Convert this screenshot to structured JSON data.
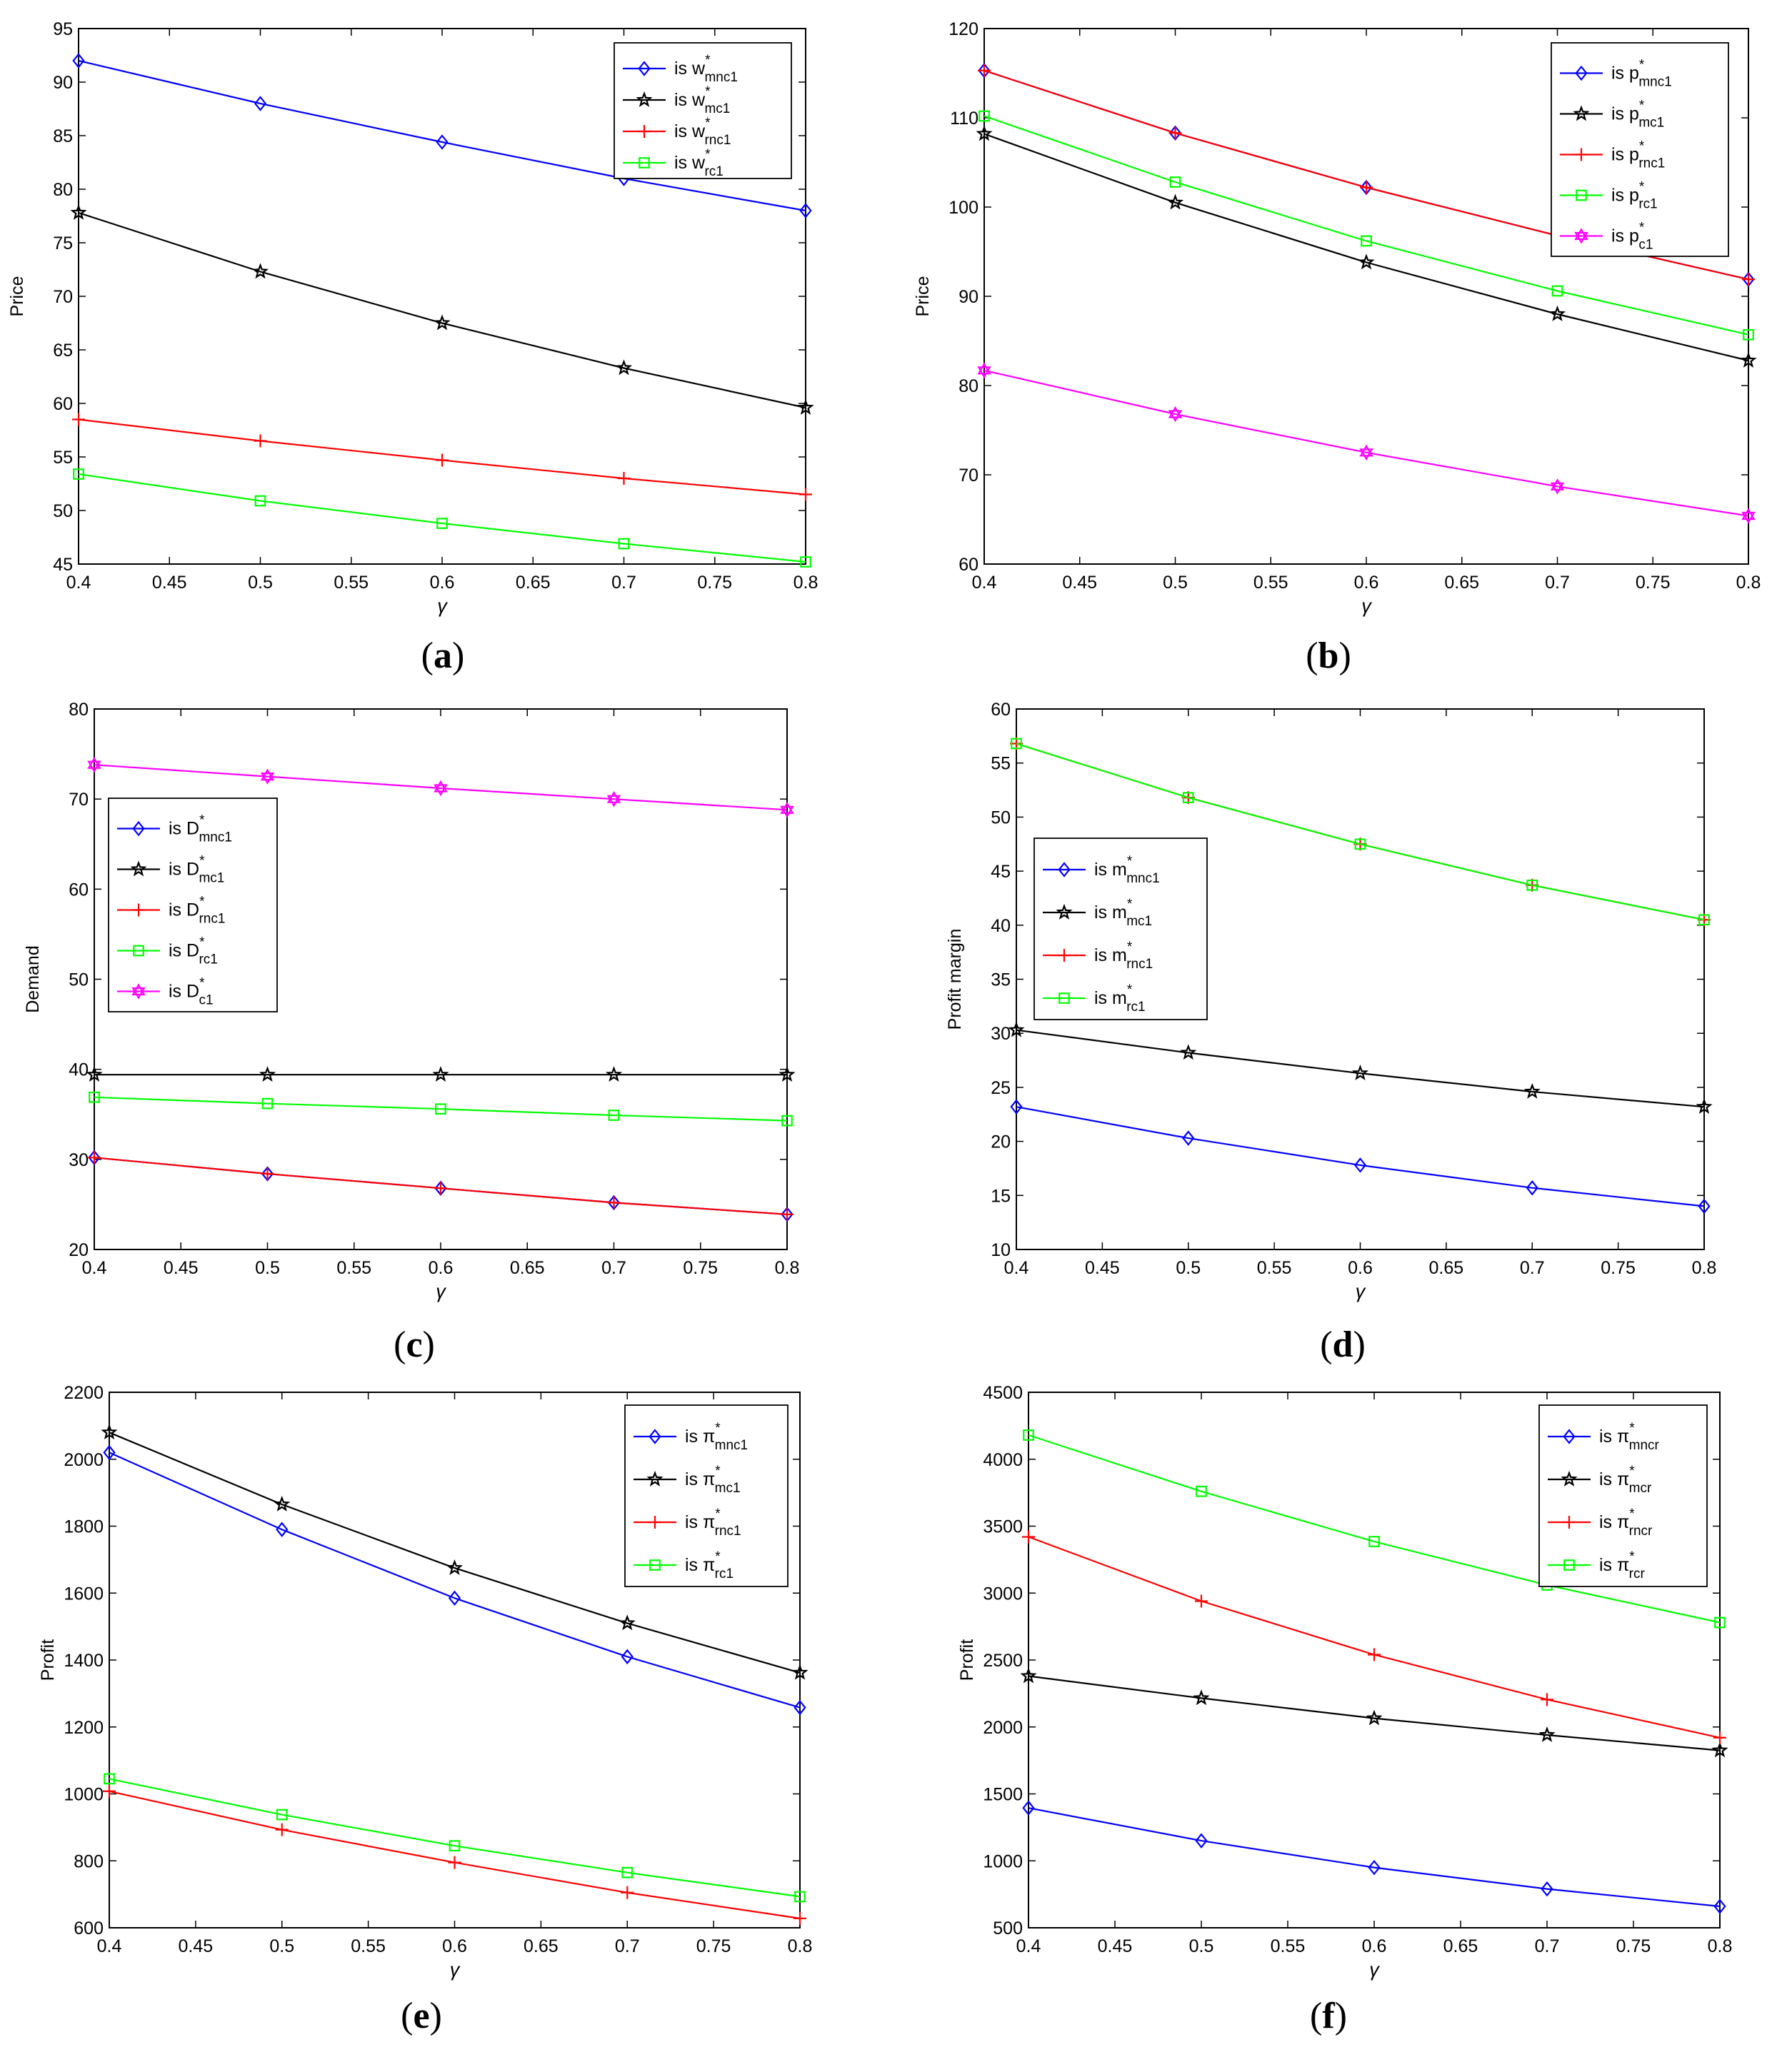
{
  "chart_data": [
    {
      "panel_label": "(a)",
      "type": "line",
      "xlabel": "γ",
      "ylabel": "Price",
      "x": [
        0.4,
        0.5,
        0.6,
        0.7,
        0.8
      ],
      "xlim": [
        0.4,
        0.8
      ],
      "ylim": [
        45,
        95
      ],
      "xticks": [
        "0.4",
        "0.45",
        "0.5",
        "0.55",
        "0.6",
        "0.65",
        "0.7",
        "0.75",
        "0.8"
      ],
      "yticks": [
        "45",
        "50",
        "55",
        "60",
        "65",
        "70",
        "75",
        "80",
        "85",
        "90",
        "95"
      ],
      "legend_position": "top-right",
      "series": [
        {
          "legend_prefix": "is",
          "var": "w",
          "sub": "mnc1",
          "color": "#0000ff",
          "marker": "diamond",
          "values": [
            92,
            88,
            84.4,
            81,
            78
          ]
        },
        {
          "legend_prefix": "is",
          "var": "w",
          "sub": "mc1",
          "color": "#000000",
          "marker": "star",
          "values": [
            77.8,
            72.3,
            67.5,
            63.3,
            59.6
          ]
        },
        {
          "legend_prefix": "is",
          "var": "w",
          "sub": "rnc1",
          "color": "#ff0000",
          "marker": "plus",
          "values": [
            58.5,
            56.5,
            54.7,
            53,
            51.5
          ]
        },
        {
          "legend_prefix": "is",
          "var": "w",
          "sub": "rc1",
          "color": "#00ff00",
          "marker": "square",
          "values": [
            53.4,
            50.9,
            48.8,
            46.9,
            45.2
          ]
        }
      ]
    },
    {
      "panel_label": "(b)",
      "type": "line",
      "xlabel": "γ",
      "ylabel": "Price",
      "x": [
        0.4,
        0.5,
        0.6,
        0.7,
        0.8
      ],
      "xlim": [
        0.4,
        0.8
      ],
      "ylim": [
        60,
        120
      ],
      "xticks": [
        "0.4",
        "0.45",
        "0.5",
        "0.55",
        "0.6",
        "0.65",
        "0.7",
        "0.75",
        "0.8"
      ],
      "yticks": [
        "60",
        "70",
        "80",
        "90",
        "100",
        "110",
        "120"
      ],
      "legend_position": "top-right",
      "series": [
        {
          "legend_prefix": "is",
          "var": "p",
          "sub": "mnc1",
          "color": "#0000ff",
          "marker": "diamond",
          "values": [
            115.3,
            108.3,
            102.2,
            96.8,
            91.9
          ]
        },
        {
          "legend_prefix": "is",
          "var": "p",
          "sub": "mc1",
          "color": "#000000",
          "marker": "star",
          "values": [
            108.2,
            100.5,
            93.8,
            88,
            82.8
          ]
        },
        {
          "legend_prefix": "is",
          "var": "p",
          "sub": "rnc1",
          "color": "#ff0000",
          "marker": "plus",
          "values": [
            115.3,
            108.3,
            102.2,
            96.8,
            91.9
          ]
        },
        {
          "legend_prefix": "is",
          "var": "p",
          "sub": "rc1",
          "color": "#00ff00",
          "marker": "square",
          "values": [
            110.2,
            102.8,
            96.2,
            90.6,
            85.7
          ]
        },
        {
          "legend_prefix": "is",
          "var": "p",
          "sub": "c1",
          "color": "#ff00ff",
          "marker": "hexagram",
          "values": [
            81.7,
            76.8,
            72.5,
            68.7,
            65.4
          ]
        }
      ]
    },
    {
      "panel_label": "(c)",
      "type": "line",
      "xlabel": "γ",
      "ylabel": "Demand",
      "x": [
        0.4,
        0.5,
        0.6,
        0.7,
        0.8
      ],
      "xlim": [
        0.4,
        0.8
      ],
      "ylim": [
        20,
        80
      ],
      "xticks": [
        "0.4",
        "0.45",
        "0.5",
        "0.55",
        "0.6",
        "0.65",
        "0.7",
        "0.75",
        "0.8"
      ],
      "yticks": [
        "20",
        "30",
        "40",
        "50",
        "60",
        "70",
        "80"
      ],
      "legend_position": "left",
      "series": [
        {
          "legend_prefix": "is",
          "var": "D",
          "sub": "mnc1",
          "color": "#0000ff",
          "marker": "diamond",
          "values": [
            30.2,
            28.4,
            26.8,
            25.2,
            23.9
          ]
        },
        {
          "legend_prefix": "is",
          "var": "D",
          "sub": "mc1",
          "color": "#000000",
          "marker": "star",
          "values": [
            39.4,
            39.4,
            39.4,
            39.4,
            39.4
          ]
        },
        {
          "legend_prefix": "is",
          "var": "D",
          "sub": "rnc1",
          "color": "#ff0000",
          "marker": "plus",
          "values": [
            30.2,
            28.4,
            26.8,
            25.2,
            23.9
          ]
        },
        {
          "legend_prefix": "is",
          "var": "D",
          "sub": "rc1",
          "color": "#00ff00",
          "marker": "square",
          "values": [
            36.9,
            36.2,
            35.6,
            34.9,
            34.3
          ]
        },
        {
          "legend_prefix": "is",
          "var": "D",
          "sub": "c1",
          "color": "#ff00ff",
          "marker": "hexagram",
          "values": [
            73.8,
            72.5,
            71.2,
            70,
            68.8
          ]
        }
      ]
    },
    {
      "panel_label": "(d)",
      "type": "line",
      "xlabel": "γ",
      "ylabel": "Profit margin",
      "x": [
        0.4,
        0.5,
        0.6,
        0.7,
        0.8
      ],
      "xlim": [
        0.4,
        0.8
      ],
      "ylim": [
        10,
        60
      ],
      "xticks": [
        "0.4",
        "0.45",
        "0.5",
        "0.55",
        "0.6",
        "0.65",
        "0.7",
        "0.75",
        "0.8"
      ],
      "yticks": [
        "10",
        "15",
        "20",
        "25",
        "30",
        "35",
        "40",
        "45",
        "50",
        "55",
        "60"
      ],
      "legend_position": "left",
      "series": [
        {
          "legend_prefix": "is",
          "var": "m",
          "sub": "mnc1",
          "color": "#0000ff",
          "marker": "diamond",
          "values": [
            23.2,
            20.3,
            17.8,
            15.7,
            14
          ]
        },
        {
          "legend_prefix": "is",
          "var": "m",
          "sub": "mc1",
          "color": "#000000",
          "marker": "star",
          "values": [
            30.3,
            28.2,
            26.3,
            24.6,
            23.2
          ]
        },
        {
          "legend_prefix": "is",
          "var": "m",
          "sub": "rnc1",
          "color": "#ff0000",
          "marker": "plus",
          "values": [
            56.8,
            51.8,
            47.5,
            43.7,
            40.5
          ]
        },
        {
          "legend_prefix": "is",
          "var": "m",
          "sub": "rc1",
          "color": "#00ff00",
          "marker": "square",
          "values": [
            56.8,
            51.8,
            47.5,
            43.7,
            40.5
          ]
        }
      ]
    },
    {
      "panel_label": "(e)",
      "type": "line",
      "xlabel": "γ",
      "ylabel": "Profit",
      "x": [
        0.4,
        0.5,
        0.6,
        0.7,
        0.8
      ],
      "xlim": [
        0.4,
        0.8
      ],
      "ylim": [
        600,
        2200
      ],
      "xticks": [
        "0.4",
        "0.45",
        "0.5",
        "0.55",
        "0.6",
        "0.65",
        "0.7",
        "0.75",
        "0.8"
      ],
      "yticks": [
        "600",
        "800",
        "1000",
        "1200",
        "1400",
        "1600",
        "1800",
        "2000",
        "2200"
      ],
      "legend_position": "top-right",
      "series": [
        {
          "legend_prefix": "is",
          "var": "π",
          "sub": "mnc1",
          "color": "#0000ff",
          "marker": "diamond",
          "values": [
            2020,
            1790,
            1585,
            1410,
            1258
          ]
        },
        {
          "legend_prefix": "is",
          "var": "π",
          "sub": "mc1",
          "color": "#000000",
          "marker": "star",
          "values": [
            2080,
            1865,
            1675,
            1510,
            1362
          ]
        },
        {
          "legend_prefix": "is",
          "var": "π",
          "sub": "rnc1",
          "color": "#ff0000",
          "marker": "plus",
          "values": [
            1008,
            893,
            795,
            705,
            628
          ]
        },
        {
          "legend_prefix": "is",
          "var": "π",
          "sub": "rc1",
          "color": "#00ff00",
          "marker": "square",
          "values": [
            1045,
            938,
            845,
            765,
            693
          ]
        }
      ]
    },
    {
      "panel_label": "(f)",
      "type": "line",
      "xlabel": "γ",
      "ylabel": "Profit",
      "x": [
        0.4,
        0.5,
        0.6,
        0.7,
        0.8
      ],
      "xlim": [
        0.4,
        0.8
      ],
      "ylim": [
        500,
        4500
      ],
      "xticks": [
        "0.4",
        "0.45",
        "0.5",
        "0.55",
        "0.6",
        "0.65",
        "0.7",
        "0.75",
        "0.8"
      ],
      "yticks": [
        "500",
        "1000",
        "1500",
        "2000",
        "2500",
        "3000",
        "3500",
        "4000",
        "4500"
      ],
      "legend_position": "top-right",
      "series": [
        {
          "legend_prefix": "is",
          "var": "π",
          "sub": "mncr",
          "color": "#0000ff",
          "marker": "diamond",
          "values": [
            1395,
            1150,
            950,
            790,
            660
          ]
        },
        {
          "legend_prefix": "is",
          "var": "π",
          "sub": "mcr",
          "color": "#000000",
          "marker": "star",
          "values": [
            2380,
            2215,
            2065,
            1940,
            1825
          ]
        },
        {
          "legend_prefix": "is",
          "var": "π",
          "sub": "rncr",
          "color": "#ff0000",
          "marker": "plus",
          "values": [
            3420,
            2940,
            2540,
            2205,
            1920
          ]
        },
        {
          "legend_prefix": "is",
          "var": "π",
          "sub": "rcr",
          "color": "#00ff00",
          "marker": "square",
          "values": [
            4180,
            3760,
            3385,
            3060,
            2780
          ]
        }
      ]
    }
  ]
}
